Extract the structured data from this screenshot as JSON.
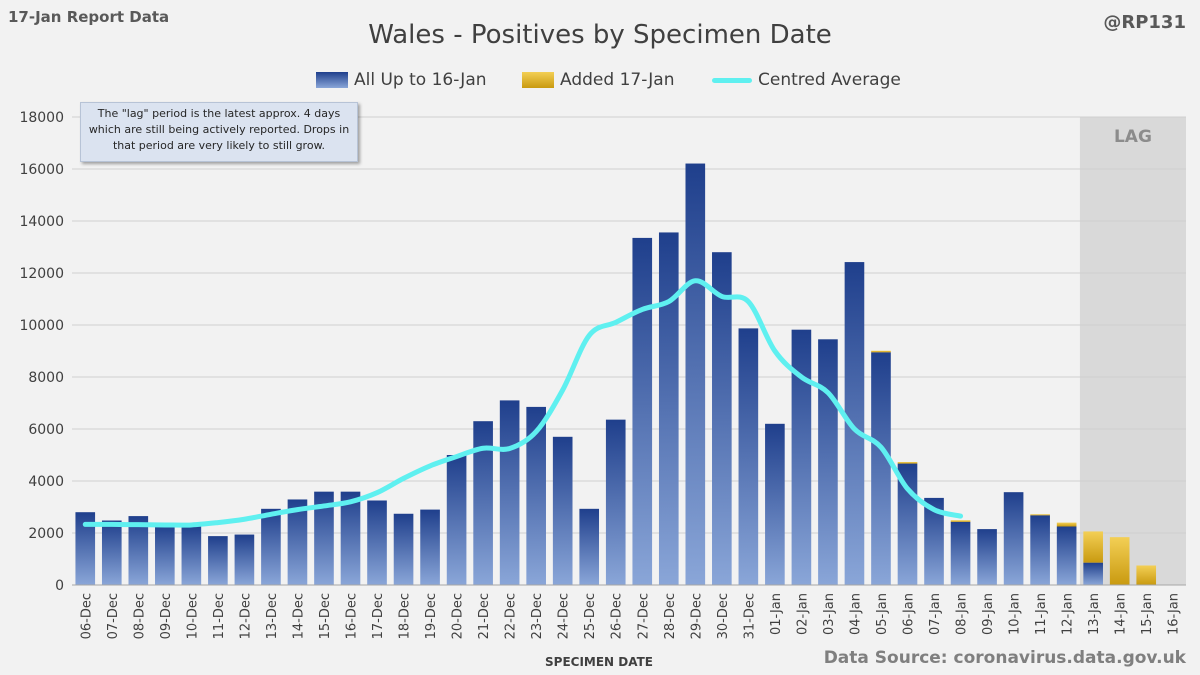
{
  "header": {
    "report_label": "17-Jan Report Data",
    "handle": "@RP131",
    "source": "Data Source: coronavirus.data.gov.uk"
  },
  "note": "The \"lag\" period is the latest approx. 4 days which are still being actively reported. Drops in that period are very likely to still grow.",
  "colors": {
    "background": "#f2f2f2",
    "bar_blue_top": "#1f3f8c",
    "bar_blue_bottom": "#8aa6d8",
    "bar_added": "#e5b520",
    "average_line": "#5ff0f0",
    "lag_shade": "#d9d9d9"
  },
  "chart_data": {
    "type": "bar",
    "title": "Wales - Positives by Specimen Date",
    "xlabel": "SPECIMEN DATE",
    "ylabel": "",
    "ylim": [
      0,
      18000
    ],
    "yticks": [
      0,
      2000,
      4000,
      6000,
      8000,
      10000,
      12000,
      14000,
      16000,
      18000
    ],
    "grid": true,
    "legend_position": "top-center",
    "lag_label": "LAG",
    "lag_start_category": "13-Jan",
    "categories": [
      "06-Dec",
      "07-Dec",
      "08-Dec",
      "09-Dec",
      "10-Dec",
      "11-Dec",
      "12-Dec",
      "13-Dec",
      "14-Dec",
      "15-Dec",
      "16-Dec",
      "17-Dec",
      "18-Dec",
      "19-Dec",
      "20-Dec",
      "21-Dec",
      "22-Dec",
      "23-Dec",
      "24-Dec",
      "25-Dec",
      "26-Dec",
      "27-Dec",
      "28-Dec",
      "29-Dec",
      "30-Dec",
      "31-Dec",
      "01-Jan",
      "02-Jan",
      "03-Jan",
      "04-Jan",
      "05-Jan",
      "06-Jan",
      "07-Jan",
      "08-Jan",
      "09-Jan",
      "10-Jan",
      "11-Jan",
      "12-Jan",
      "13-Jan",
      "14-Jan",
      "15-Jan",
      "16-Jan"
    ],
    "series": [
      {
        "name": "All Up to 16-Jan",
        "type": "bar",
        "values": [
          2800,
          2480,
          2650,
          2300,
          2280,
          1880,
          1940,
          2930,
          3290,
          3590,
          3590,
          3250,
          2740,
          2900,
          5000,
          6300,
          7100,
          6850,
          5700,
          2930,
          6360,
          13350,
          13560,
          16210,
          12800,
          9870,
          6200,
          9820,
          9450,
          12420,
          8950,
          4670,
          3350,
          2430,
          2150,
          3570,
          2680,
          2250,
          860,
          0,
          0,
          0
        ]
      },
      {
        "name": "Added 17-Jan",
        "type": "bar",
        "values": [
          0,
          0,
          0,
          0,
          0,
          0,
          0,
          0,
          0,
          0,
          0,
          0,
          0,
          0,
          0,
          0,
          0,
          0,
          0,
          0,
          0,
          0,
          0,
          0,
          0,
          0,
          0,
          0,
          0,
          0,
          60,
          60,
          0,
          60,
          0,
          0,
          40,
          150,
          1200,
          1840,
          750,
          0
        ]
      },
      {
        "name": "Centred Average",
        "type": "line",
        "values": [
          2330,
          2330,
          2320,
          2310,
          2310,
          2400,
          2530,
          2720,
          2900,
          3040,
          3200,
          3550,
          4100,
          4580,
          4940,
          5260,
          5250,
          5900,
          7500,
          9600,
          10100,
          10600,
          10900,
          11700,
          11100,
          10900,
          9000,
          8000,
          7400,
          6000,
          5300,
          3700,
          2900,
          2650,
          null,
          null,
          null,
          null,
          null,
          null,
          null,
          null
        ]
      }
    ]
  }
}
